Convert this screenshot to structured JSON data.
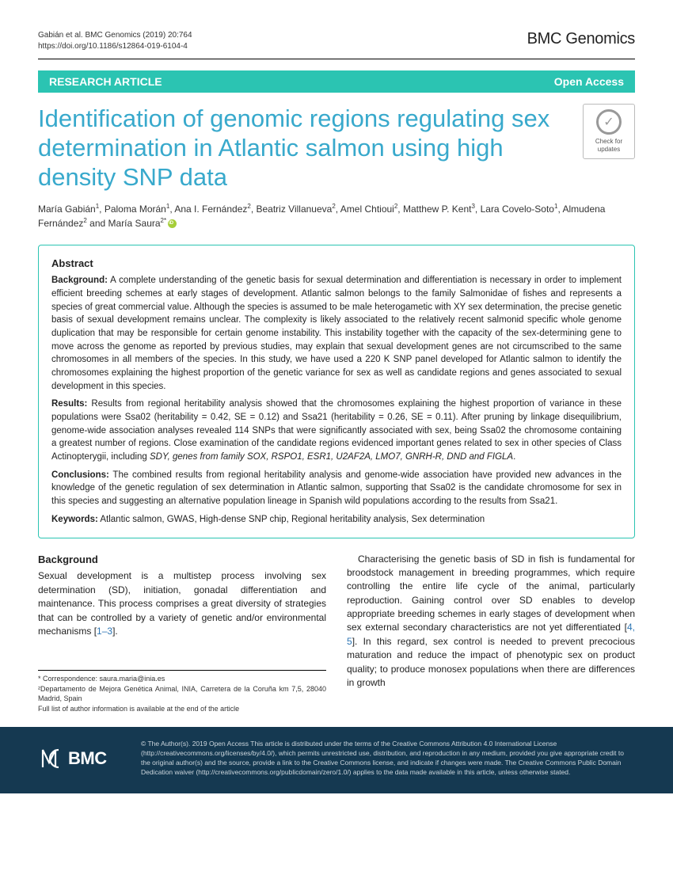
{
  "header": {
    "citation_line1": "Gabián et al. BMC Genomics        (2019) 20:764",
    "citation_line2": "https://doi.org/10.1186/s12864-019-6104-4",
    "journal": "BMC Genomics"
  },
  "banner": {
    "left": "RESEARCH ARTICLE",
    "right": "Open Access"
  },
  "title": "Identification of genomic regions regulating sex determination in Atlantic salmon using high density SNP data",
  "crossmark": {
    "line1": "Check for",
    "line2": "updates"
  },
  "authors_html": "María Gabián<sup>1</sup>, Paloma Morán<sup>1</sup>, Ana I. Fernández<sup>2</sup>, Beatriz Villanueva<sup>2</sup>, Amel Chtioui<sup>2</sup>, Matthew P. Kent<sup>3</sup>, Lara Covelo-Soto<sup>1</sup>, Almudena Fernández<sup>2</sup> and María Saura<sup>2*</sup>",
  "abstract": {
    "heading": "Abstract",
    "background_label": "Background:",
    "background": " A complete understanding of the genetic basis for sexual determination and differentiation is necessary in order to implement efficient breeding schemes at early stages of development. Atlantic salmon belongs to the family Salmonidae of fishes and represents a species of great commercial value. Although the species is assumed to be male heterogametic with XY sex determination, the precise genetic basis of sexual development remains unclear. The complexity is likely associated to the relatively recent salmonid specific whole genome duplication that may be responsible for certain genome instability. This instability together with the capacity of the sex-determining gene to move across the genome as reported by previous studies, may explain that sexual development genes are not circumscribed to the same chromosomes in all members of the species. In this study, we have used a 220 K SNP panel developed for Atlantic salmon to identify the chromosomes explaining the highest proportion of the genetic variance for sex as well as candidate regions and genes associated to sexual development in this species.",
    "results_label": "Results:",
    "results": " Results from regional heritability analysis showed that the chromosomes explaining the highest proportion of variance in these populations were Ssa02 (heritability = 0.42, SE = 0.12) and Ssa21 (heritability = 0.26, SE = 0.11). After pruning by linkage disequilibrium, genome-wide association analyses revealed 114 SNPs that were significantly associated with sex, being Ssa02 the chromosome containing a greatest number of regions. Close examination of the candidate regions evidenced important genes related to sex in other species of Class Actinopterygii, including ",
    "results_tail": ".",
    "genes": "SDY, genes from family SOX, RSPO1, ESR1, U2AF2A, LMO7, GNRH-R, DND and FIGLA",
    "conclusions_label": "Conclusions:",
    "conclusions": " The combined results from regional heritability analysis and genome-wide association have provided new advances in the knowledge of the genetic regulation of sex determination in Atlantic salmon, supporting that Ssa02 is the candidate chromosome for sex in this species and suggesting an alternative population lineage in Spanish wild populations according to the results from Ssa21.",
    "keywords_label": "Keywords:",
    "keywords": " Atlantic salmon, GWAS, High-dense SNP chip, Regional heritability analysis, Sex determination"
  },
  "body": {
    "bg_heading": "Background",
    "left_p1": "Sexual development is a multistep process involving sex determination (SD), initiation, gonadal differentiation and maintenance. This process comprises a great diversity of strategies that can be controlled by a variety of genetic and/or environmental mechanisms [",
    "left_refs": "1–3",
    "left_p1_tail": "].",
    "right_p1": "Characterising the genetic basis of SD in fish is fundamental for broodstock management in breeding programmes, which require controlling the entire life cycle of the animal, particularly reproduction. Gaining control over SD enables to develop appropriate breeding schemes in early stages of development when sex external secondary characteristics are not yet differentiated [",
    "right_refs": "4, 5",
    "right_p1_mid": "]. In this regard, sex control is needed to prevent precocious maturation and reduce the impact of phenotypic sex on product quality; to produce monosex populations when there are differences in growth"
  },
  "correspondence": {
    "line1": "* Correspondence: saura.maria@inia.es",
    "line2": "²Departamento de Mejora Genética Animal, INIA, Carretera de la Coruña km 7,5, 28040 Madrid, Spain",
    "line3": "Full list of author information is available at the end of the article"
  },
  "footer": {
    "bmc": "BMC",
    "text": "© The Author(s). 2019 Open Access This article is distributed under the terms of the Creative Commons Attribution 4.0 International License (http://creativecommons.org/licenses/by/4.0/), which permits unrestricted use, distribution, and reproduction in any medium, provided you give appropriate credit to the original author(s) and the source, provide a link to the Creative Commons license, and indicate if changes were made. The Creative Commons Public Domain Dedication waiver (http://creativecommons.org/publicdomain/zero/1.0/) applies to the data made available in this article, unless otherwise stated."
  },
  "colors": {
    "teal": "#2bc4b2",
    "title_blue": "#38a9cc",
    "footer_bg": "#153951",
    "link_blue": "#2d76b5"
  }
}
